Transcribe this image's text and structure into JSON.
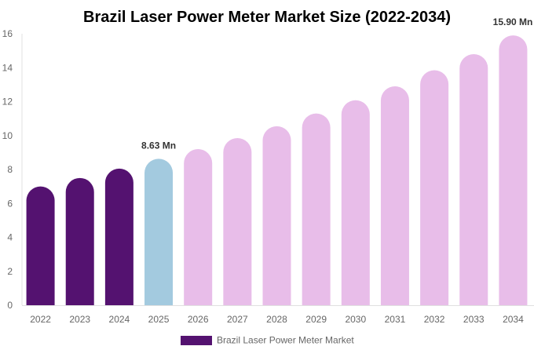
{
  "chart_data": {
    "type": "bar",
    "title": "Brazil Laser Power Meter Market Size (2022-2034)",
    "categories": [
      "2022",
      "2023",
      "2024",
      "2025",
      "2026",
      "2027",
      "2028",
      "2029",
      "2030",
      "2031",
      "2032",
      "2033",
      "2034"
    ],
    "series": [
      {
        "name": "Brazil Laser Power Meter Market",
        "values": [
          7.0,
          7.5,
          8.05,
          8.63,
          9.2,
          9.85,
          10.55,
          11.3,
          12.08,
          12.9,
          13.85,
          14.8,
          15.9
        ]
      }
    ],
    "data_labels": [
      {
        "category": "2025",
        "text": "8.63 Mn"
      },
      {
        "category": "2034",
        "text": "15.90 Mn"
      }
    ],
    "ylim": [
      0,
      16
    ],
    "yticks": [
      0,
      2,
      4,
      6,
      8,
      10,
      12,
      14,
      16
    ],
    "xlabel": "",
    "ylabel": "",
    "grid": false,
    "legend_position": "bottom",
    "colors": {
      "historical": "#541270",
      "current": "#a3cadf",
      "forecast": "#e8bde9",
      "legend": "#541270"
    }
  }
}
